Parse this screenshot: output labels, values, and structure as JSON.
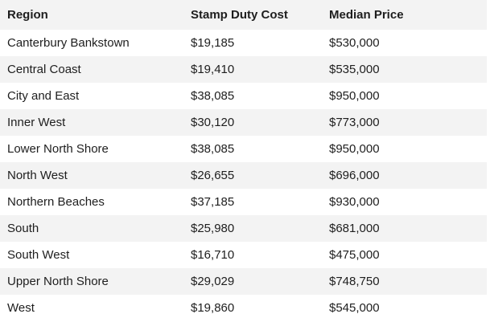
{
  "table": {
    "columns": [
      "Region",
      "Stamp Duty Cost",
      "Median Price"
    ],
    "rows": [
      [
        "Canterbury Bankstown",
        "$19,185",
        "$530,000"
      ],
      [
        "Central Coast",
        "$19,410",
        "$535,000"
      ],
      [
        "City and East",
        "$38,085",
        "$950,000"
      ],
      [
        "Inner West",
        "$30,120",
        "$773,000"
      ],
      [
        "Lower North Shore",
        "$38,085",
        "$950,000"
      ],
      [
        "North West",
        "$26,655",
        "$696,000"
      ],
      [
        "Northern Beaches",
        "$37,185",
        "$930,000"
      ],
      [
        "South",
        "$25,980",
        "$681,000"
      ],
      [
        "South West",
        "$16,710",
        "$475,000"
      ],
      [
        "Upper North Shore",
        "$29,029",
        "$748,750"
      ],
      [
        "West",
        "$19,860",
        "$545,000"
      ]
    ]
  }
}
